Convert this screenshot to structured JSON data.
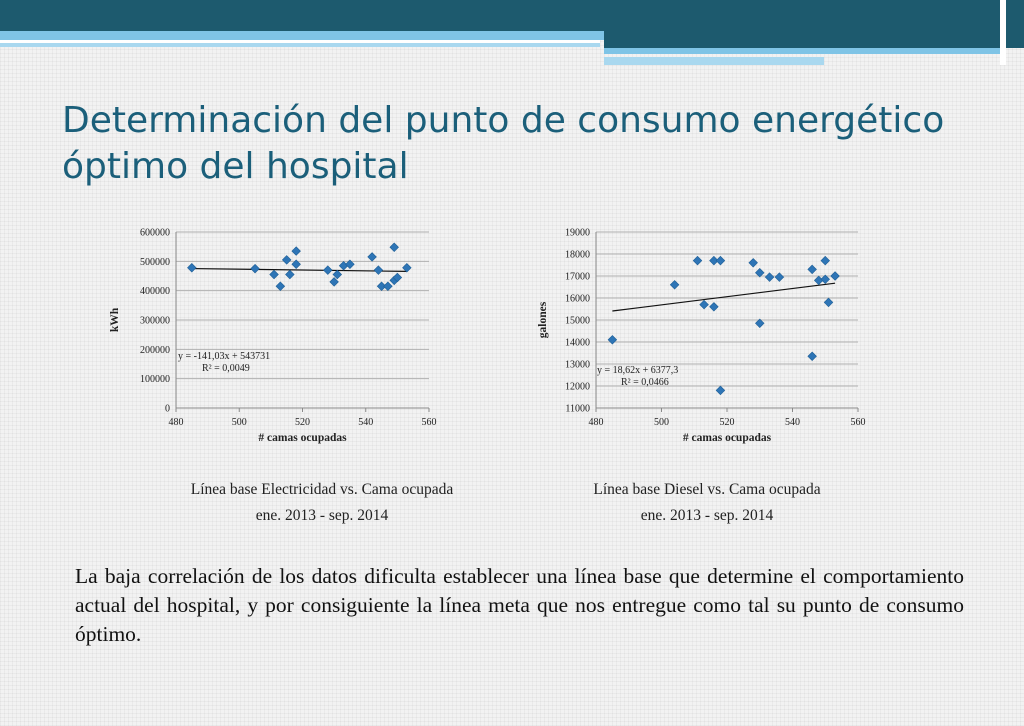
{
  "slide": {
    "title": "Determinación del punto de consumo energético óptimo del hospital",
    "captions": [
      {
        "line1": "Línea base Electricidad vs. Cama ocupada",
        "line2": "ene. 2013 - sep. 2014"
      },
      {
        "line1": "Línea base Diesel vs. Cama ocupada",
        "line2": "ene. 2013 - sep. 2014"
      }
    ],
    "body": "La baja correlación de los datos dificulta establecer una línea base que determine el comportamiento actual del hospital, y por consiguiente la línea meta que nos entregue como tal su punto de consumo óptimo."
  },
  "colors": {
    "title": "#1b5f7a",
    "marker": "#2e75b6",
    "band_dark": "#1d5a6e",
    "band_light": "#7fc4e6"
  },
  "chart_data": [
    {
      "type": "scatter",
      "xlabel": "# camas ocupadas",
      "ylabel": "kWh",
      "xlim": [
        480,
        560
      ],
      "ylim": [
        0,
        600000
      ],
      "xticks": [
        480,
        500,
        520,
        540,
        560
      ],
      "yticks": [
        0,
        100000,
        200000,
        300000,
        400000,
        500000,
        600000
      ],
      "ytick_labels": [
        "0",
        "100000",
        "200000",
        "300000",
        "400000",
        "500000",
        "600000"
      ],
      "grid": "horizontal",
      "points": [
        [
          485,
          478000
        ],
        [
          505,
          475000
        ],
        [
          511,
          455000
        ],
        [
          513,
          415000
        ],
        [
          515,
          505000
        ],
        [
          516,
          455000
        ],
        [
          518,
          535000
        ],
        [
          518,
          490000
        ],
        [
          528,
          470000
        ],
        [
          530,
          430000
        ],
        [
          531,
          455000
        ],
        [
          533,
          485000
        ],
        [
          535,
          490000
        ],
        [
          542,
          515000
        ],
        [
          544,
          470000
        ],
        [
          545,
          415000
        ],
        [
          547,
          415000
        ],
        [
          549,
          548000
        ],
        [
          549,
          435000
        ],
        [
          550,
          445000
        ],
        [
          553,
          478000
        ]
      ],
      "trendline": {
        "slope": -141.03,
        "intercept": 543731
      },
      "equation": "y = -141,03x + 543731",
      "r2": "R² = 0,0049"
    },
    {
      "type": "scatter",
      "xlabel": "# camas ocupadas",
      "ylabel": "galones",
      "xlim": [
        480,
        560
      ],
      "ylim": [
        11000,
        19000
      ],
      "xticks": [
        480,
        500,
        520,
        540,
        560
      ],
      "yticks": [
        11000,
        12000,
        13000,
        14000,
        15000,
        16000,
        17000,
        18000,
        19000
      ],
      "ytick_labels": [
        "11000",
        "12000",
        "13000",
        "14000",
        "15000",
        "16000",
        "17000",
        "18000",
        "19000"
      ],
      "grid": "horizontal",
      "points": [
        [
          485,
          14100
        ],
        [
          504,
          16600
        ],
        [
          511,
          17700
        ],
        [
          513,
          15700
        ],
        [
          516,
          17700
        ],
        [
          516,
          15600
        ],
        [
          518,
          17700
        ],
        [
          518,
          11800
        ],
        [
          528,
          17600
        ],
        [
          530,
          14850
        ],
        [
          530,
          17150
        ],
        [
          533,
          16950
        ],
        [
          536,
          16950
        ],
        [
          546,
          13350
        ],
        [
          546,
          17300
        ],
        [
          548,
          16800
        ],
        [
          550,
          16850
        ],
        [
          550,
          17700
        ],
        [
          551,
          15800
        ],
        [
          553,
          17000
        ]
      ],
      "trendline": {
        "slope": 18.62,
        "intercept": 6377.3
      },
      "equation": "y = 18,62x + 6377,3",
      "r2": "R² = 0,0466"
    }
  ]
}
